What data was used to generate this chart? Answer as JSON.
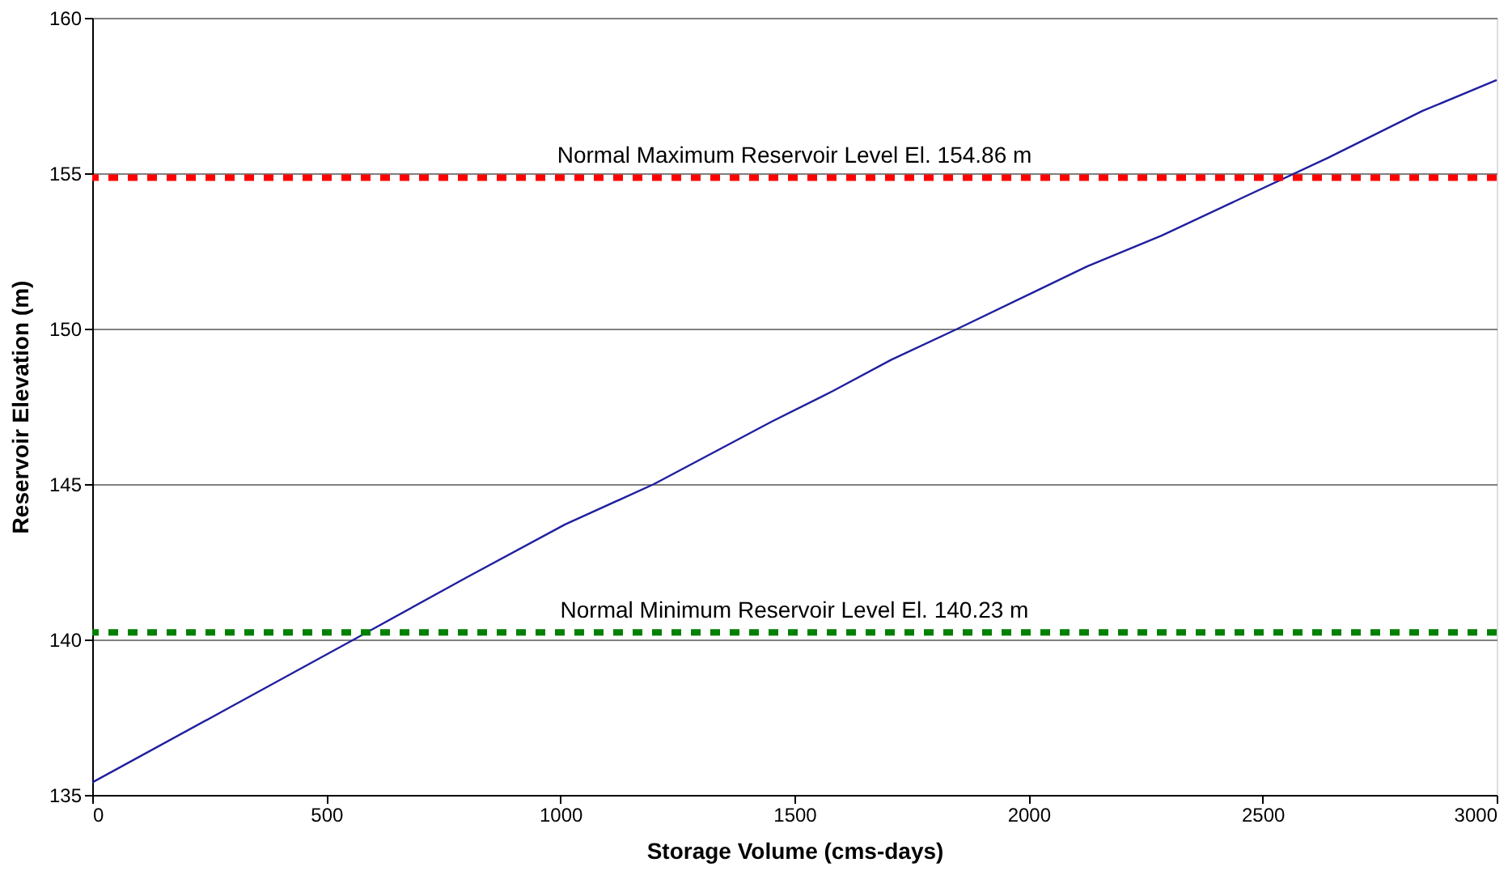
{
  "chart_data": {
    "type": "line",
    "xlabel": "Storage Volume (cms-days)",
    "ylabel": "Reservoir Elevation (m)",
    "x": [
      0,
      280,
      559,
      800,
      1010,
      1200,
      1450,
      1583,
      1707,
      1849,
      2125,
      2285,
      2427,
      2640,
      2841,
      3000
    ],
    "series": [
      {
        "color": "#1f1fa0",
        "values": [
          135.4,
          137.7,
          140,
          142,
          143.7,
          145,
          147,
          148,
          149,
          150,
          152,
          153,
          154,
          155.5,
          157,
          158
        ]
      }
    ],
    "xlim": [
      0,
      3000
    ],
    "xticks": [
      0,
      500,
      1000,
      1500,
      2000,
      2500,
      3000
    ],
    "ylim": [
      135,
      160
    ],
    "yticks": [
      135,
      140,
      145,
      150,
      155,
      160
    ],
    "grid": "y",
    "marker": "none",
    "line_style": "solid",
    "ref_lines": [
      {
        "axis": "y",
        "value": 154.86,
        "label": "Normal Maximum Reservoir Level  El. 154.86 m",
        "color": "#ff0000",
        "line_style": "dashed"
      },
      {
        "axis": "y",
        "value": 140.23,
        "label": "Normal Minimum Reservoir Level  El. 140.23 m",
        "color": "#008000",
        "line_style": "dashed"
      }
    ]
  }
}
